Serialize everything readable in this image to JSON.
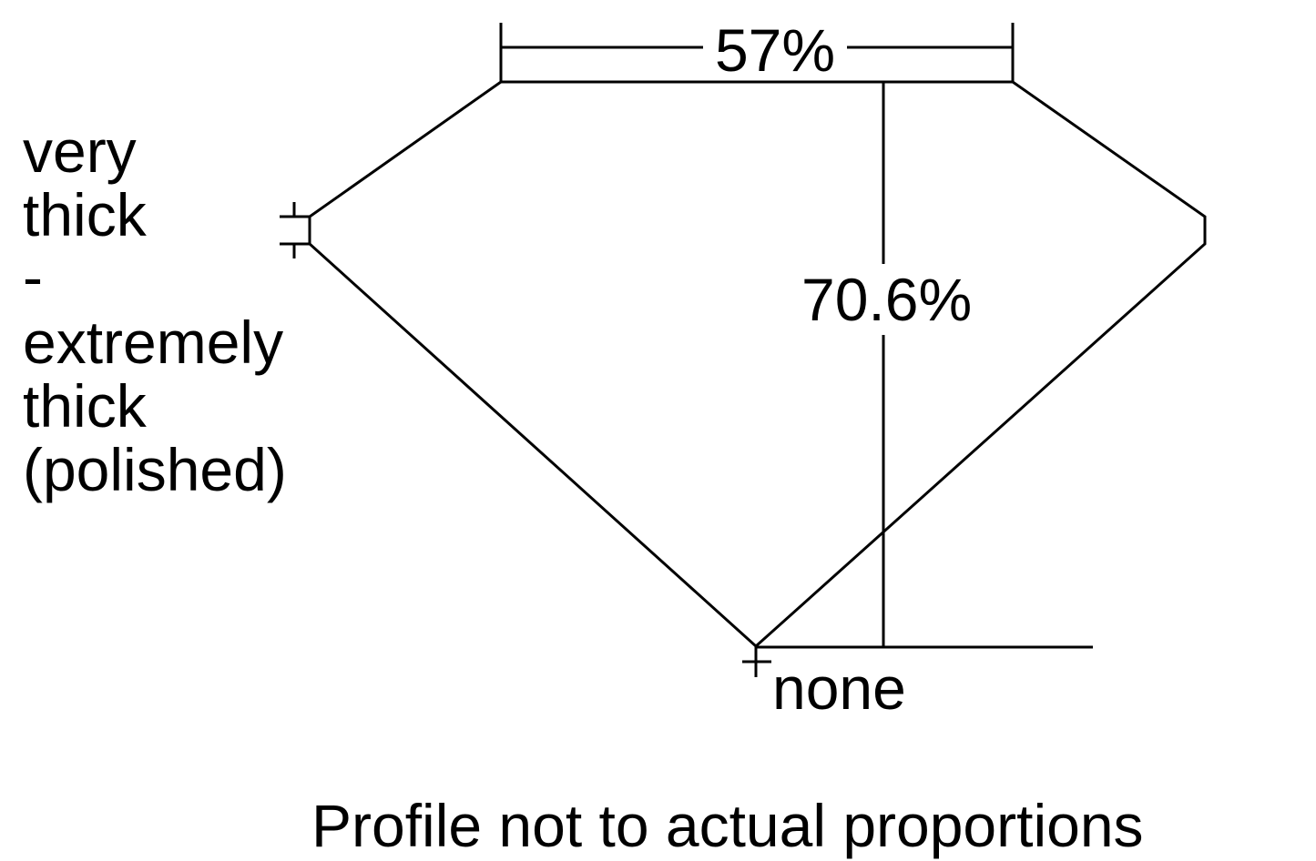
{
  "labels": {
    "table": "57%",
    "depth": "70.6%",
    "culet": "none",
    "girdle": [
      "very",
      "thick",
      "-",
      "extremely",
      "thick",
      "(polished)"
    ],
    "note": "Profile not to actual proportions"
  },
  "colors": {
    "stroke": "#000000",
    "background": "#ffffff"
  }
}
